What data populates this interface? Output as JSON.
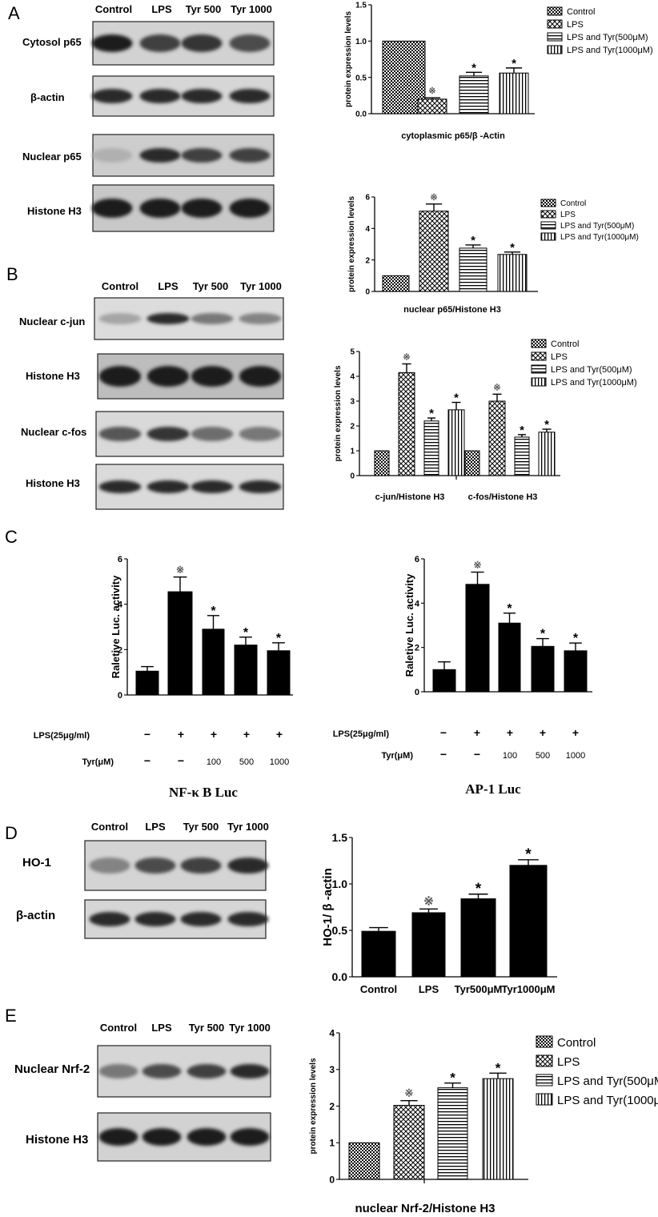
{
  "panels": {
    "A": {
      "letter": "A",
      "blot": {
        "lanes": [
          "Control",
          "LPS",
          "Tyr 500",
          "Tyr 1000"
        ],
        "rows": [
          "Cytosol p65",
          "β-actin",
          "Nuclear p65",
          "Histone H3"
        ]
      }
    },
    "B": {
      "letter": "B",
      "blot": {
        "lanes": [
          "Control",
          "LPS",
          "Tyr 500",
          "Tyr 1000"
        ],
        "rows": [
          "Nuclear c-jun",
          "Histone H3",
          "Nuclear c-fos",
          "Histone H3"
        ]
      }
    },
    "C": {
      "letter": "C"
    },
    "D": {
      "letter": "D",
      "blot": {
        "lanes": [
          "Control",
          "LPS",
          "Tyr 500",
          "Tyr 1000"
        ],
        "rows": [
          "HO-1",
          "β-actin"
        ]
      }
    },
    "E": {
      "letter": "E",
      "blot": {
        "lanes": [
          "Control",
          "LPS",
          "Tyr 500",
          "Tyr 1000"
        ],
        "rows": [
          "Nuclear Nrf-2",
          "Histone H3"
        ]
      }
    }
  },
  "legend_labels": [
    "Control",
    "LPS",
    "LPS and Tyr(500μM)",
    "LPS and Tyr(1000μM)"
  ],
  "treatment_rows": {
    "lps_label": "LPS(25μg/ml)",
    "tyr_label": "Tyr(μM)",
    "lps": [
      "−",
      "+",
      "+",
      "+",
      "+"
    ],
    "tyr": [
      "−",
      "−",
      "100",
      "500",
      "1000"
    ]
  },
  "marks": {
    "lps": "※",
    "tyr": "*"
  },
  "chart_data": [
    {
      "id": "A1",
      "type": "bar",
      "xlabel": "cytoplasmic p65/β -Actin",
      "ylabel": "protein expression levels",
      "ylim": [
        0,
        1.5
      ],
      "yticks": [
        "0.0",
        "0.5",
        "1.0",
        "1.5"
      ],
      "series": [
        {
          "name": "Control",
          "values": [
            1.0
          ],
          "errors": [
            0
          ],
          "marks": [
            ""
          ]
        },
        {
          "name": "LPS",
          "values": [
            0.2
          ],
          "errors": [
            0.02
          ],
          "marks": [
            "※"
          ]
        },
        {
          "name": "LPS and Tyr(500μM)",
          "values": [
            0.52
          ],
          "errors": [
            0.05
          ],
          "marks": [
            "*"
          ]
        },
        {
          "name": "LPS and Tyr(1000μM)",
          "values": [
            0.56
          ],
          "errors": [
            0.07
          ],
          "marks": [
            "*"
          ]
        }
      ]
    },
    {
      "id": "A2",
      "type": "bar",
      "xlabel": "nuclear p65/Histone H3",
      "ylabel": "protein expression levels",
      "ylim": [
        0,
        6
      ],
      "yticks": [
        "0",
        "2",
        "4",
        "6"
      ],
      "series": [
        {
          "name": "Control",
          "values": [
            1.0
          ],
          "errors": [
            0
          ],
          "marks": [
            ""
          ]
        },
        {
          "name": "LPS",
          "values": [
            5.1
          ],
          "errors": [
            0.45
          ],
          "marks": [
            "※"
          ]
        },
        {
          "name": "LPS and Tyr(500μM)",
          "values": [
            2.75
          ],
          "errors": [
            0.2
          ],
          "marks": [
            "*"
          ]
        },
        {
          "name": "LPS and Tyr(1000μM)",
          "values": [
            2.35
          ],
          "errors": [
            0.15
          ],
          "marks": [
            "*"
          ]
        }
      ]
    },
    {
      "id": "B",
      "type": "bar",
      "categories": [
        "c-jun/Histone H3",
        "c-fos/Histone H3"
      ],
      "ylabel": "protein expression levels",
      "ylim": [
        0,
        5
      ],
      "yticks": [
        "0",
        "1",
        "2",
        "3",
        "4",
        "5"
      ],
      "series": [
        {
          "name": "Control",
          "values": [
            1.0,
            1.0
          ],
          "errors": [
            0,
            0
          ],
          "marks": [
            "",
            ""
          ]
        },
        {
          "name": "LPS",
          "values": [
            4.15,
            3.0
          ],
          "errors": [
            0.35,
            0.28
          ],
          "marks": [
            "※",
            "※"
          ]
        },
        {
          "name": "LPS and Tyr(500μM)",
          "values": [
            2.2,
            1.55
          ],
          "errors": [
            0.12,
            0.1
          ],
          "marks": [
            "*",
            "*"
          ]
        },
        {
          "name": "LPS and Tyr(1000μM)",
          "values": [
            2.65,
            1.75
          ],
          "errors": [
            0.3,
            0.12
          ],
          "marks": [
            "*",
            "*"
          ]
        }
      ]
    },
    {
      "id": "C1",
      "type": "bar",
      "title": "NF-κ B Luc",
      "ylabel": "Raletive Luc. activity",
      "ylim": [
        0,
        6
      ],
      "yticks": [
        "0",
        "2",
        "4",
        "6"
      ],
      "values": [
        1.05,
        4.55,
        2.9,
        2.2,
        1.95
      ],
      "errors": [
        0.2,
        0.65,
        0.6,
        0.35,
        0.35
      ],
      "marks": [
        "",
        "※",
        "*",
        "*",
        "*"
      ]
    },
    {
      "id": "C2",
      "type": "bar",
      "title": "AP-1 Luc",
      "ylabel": "Raletive Luc. activity",
      "ylim": [
        0,
        6
      ],
      "yticks": [
        "0",
        "2",
        "4",
        "6"
      ],
      "values": [
        1.0,
        4.85,
        3.1,
        2.05,
        1.85
      ],
      "errors": [
        0.35,
        0.55,
        0.45,
        0.35,
        0.35
      ],
      "marks": [
        "",
        "※",
        "*",
        "*",
        "*"
      ]
    },
    {
      "id": "D",
      "type": "bar",
      "categories": [
        "Control",
        "LPS",
        "Tyr500μM",
        "Tyr1000μM"
      ],
      "ylabel": "HO-1/ β -actin",
      "ylim": [
        0,
        1.5
      ],
      "yticks": [
        "0.0",
        "0.5",
        "1.0",
        "1.5"
      ],
      "values": [
        0.49,
        0.69,
        0.84,
        1.2
      ],
      "errors": [
        0.04,
        0.04,
        0.05,
        0.06
      ],
      "marks": [
        "",
        "※",
        "*",
        "*"
      ]
    },
    {
      "id": "E",
      "type": "bar",
      "xlabel": "nuclear Nrf-2/Histone H3",
      "ylabel": "protein expression levels",
      "ylim": [
        0,
        4
      ],
      "yticks": [
        "0",
        "1",
        "2",
        "3",
        "4"
      ],
      "series": [
        {
          "name": "Control",
          "values": [
            1.0
          ],
          "errors": [
            0
          ],
          "marks": [
            ""
          ]
        },
        {
          "name": "LPS",
          "values": [
            2.02
          ],
          "errors": [
            0.13
          ],
          "marks": [
            "※"
          ]
        },
        {
          "name": "LPS and Tyr(500μM)",
          "values": [
            2.5
          ],
          "errors": [
            0.13
          ],
          "marks": [
            "*"
          ]
        },
        {
          "name": "LPS and Tyr(1000μM)",
          "values": [
            2.75
          ],
          "errors": [
            0.15
          ],
          "marks": [
            "*"
          ]
        }
      ]
    }
  ]
}
